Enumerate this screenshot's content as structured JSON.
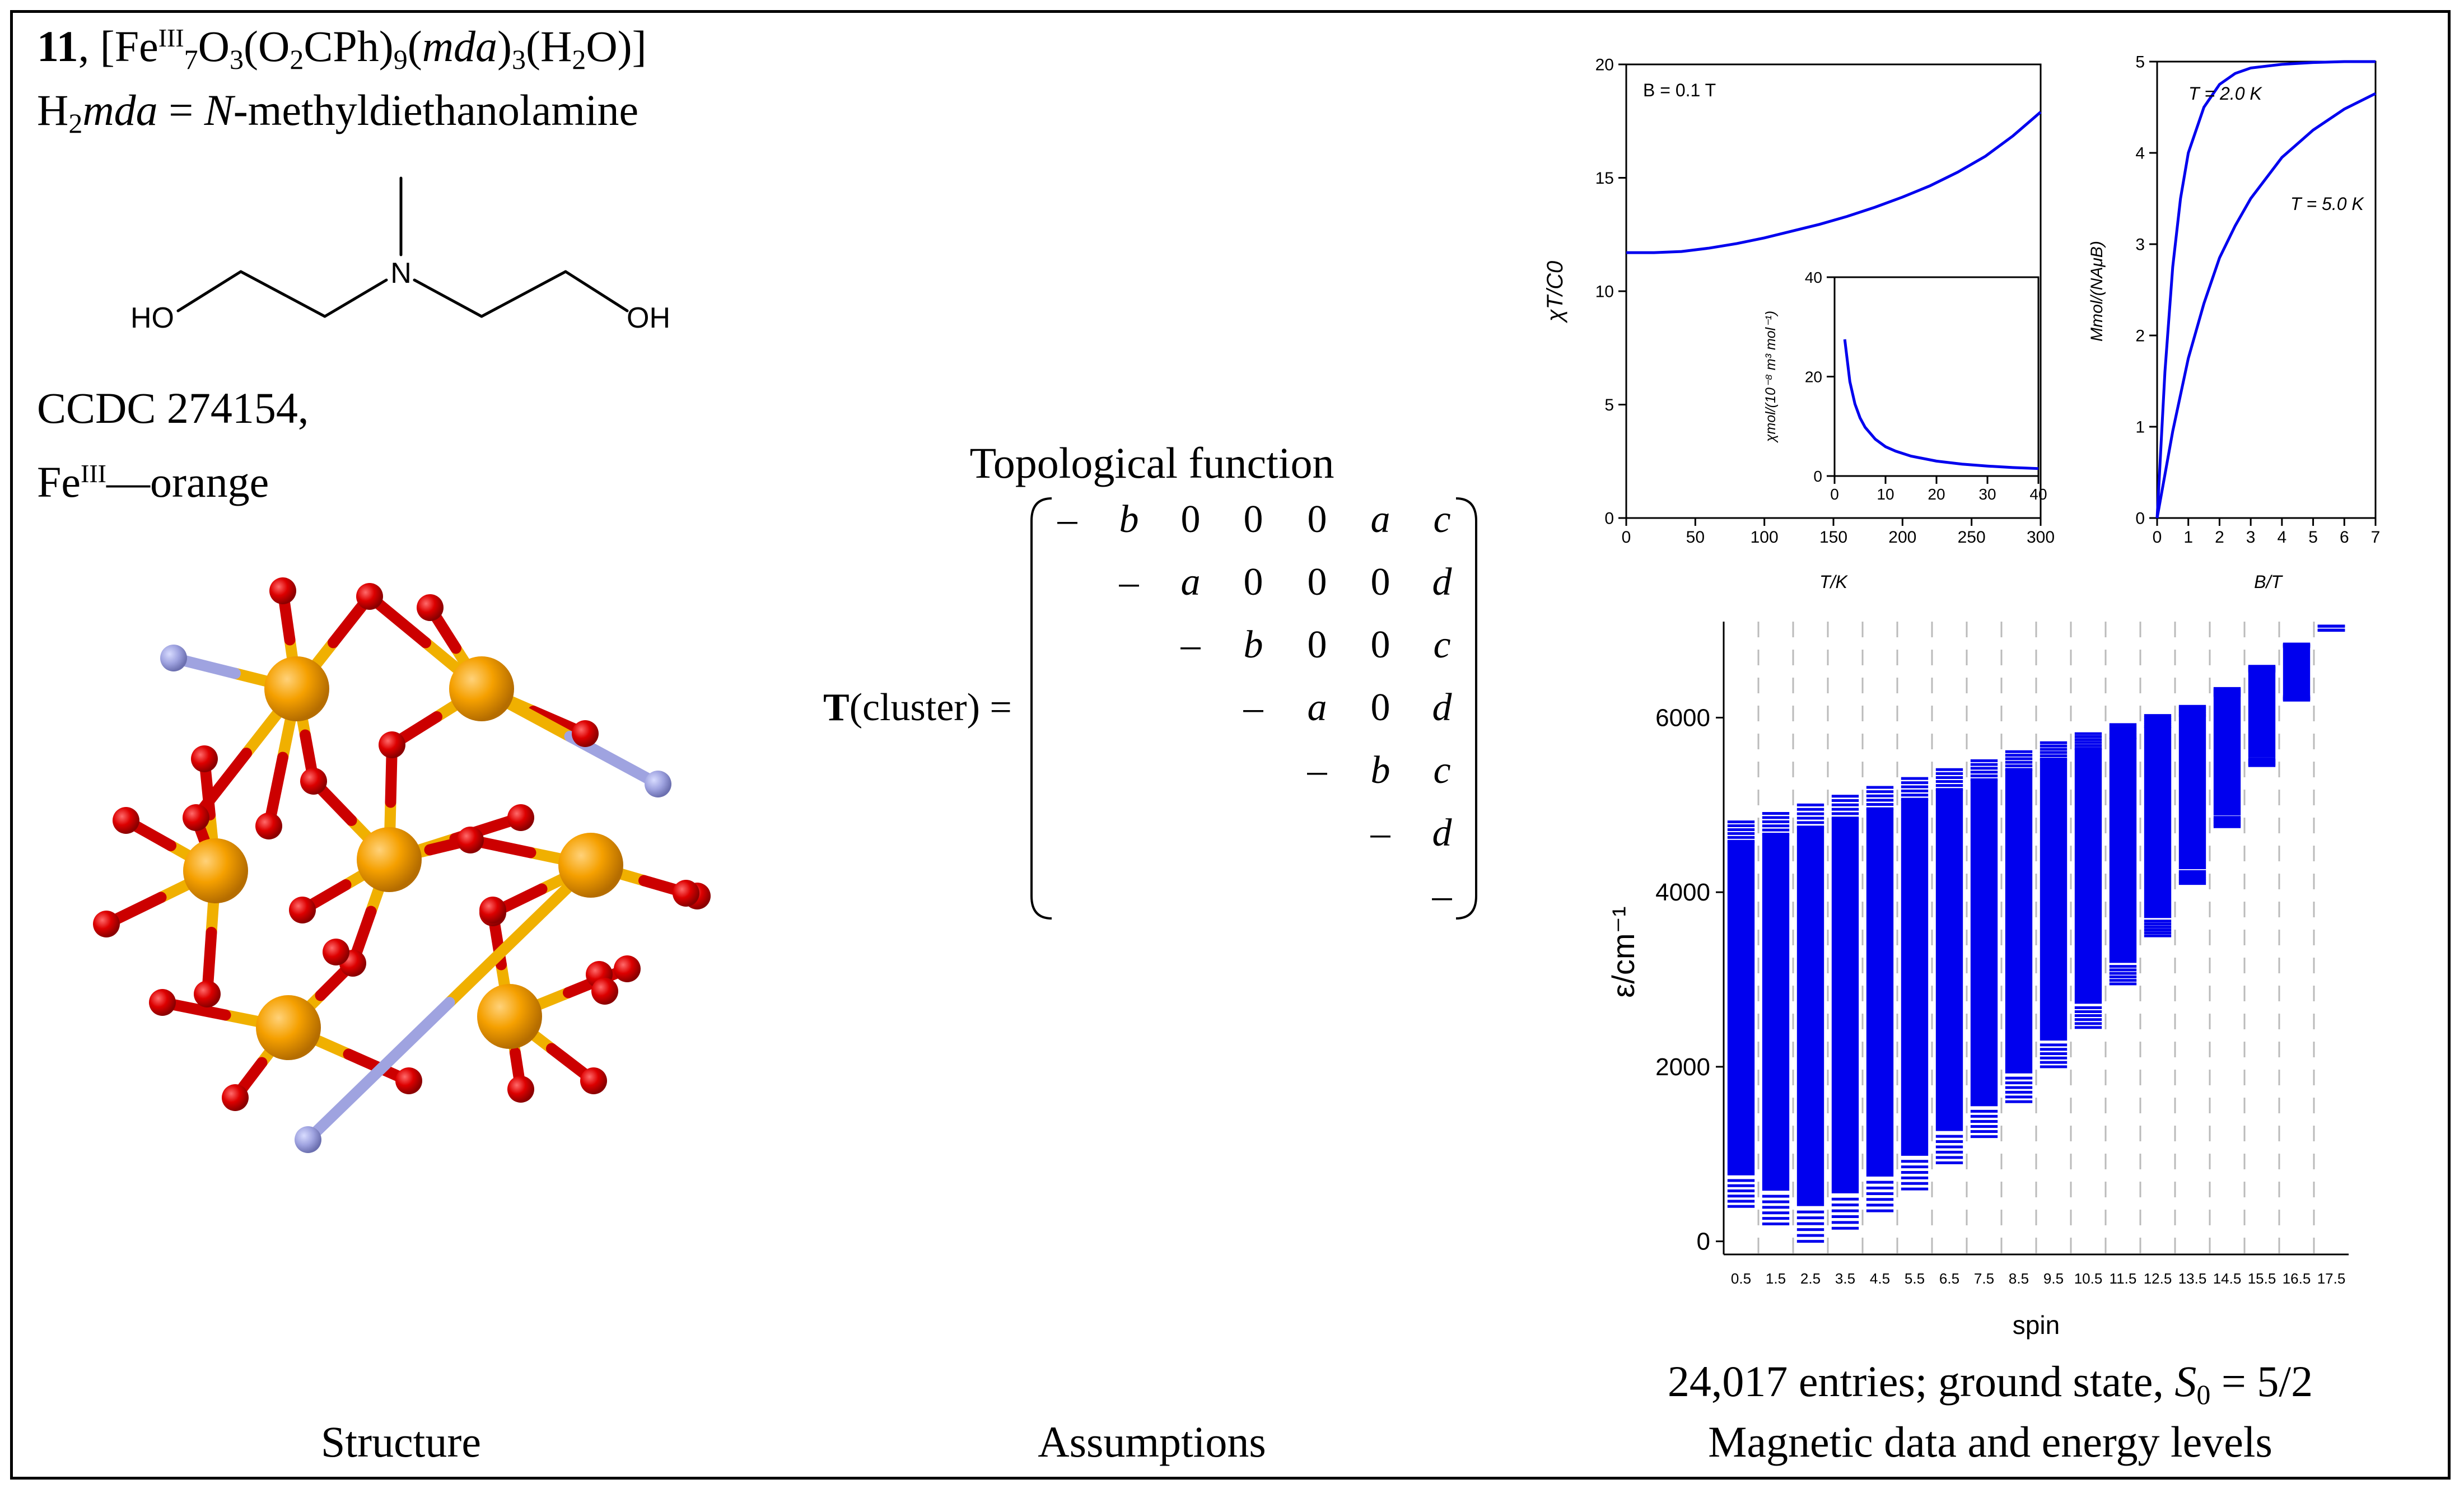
{
  "compound": {
    "number": "11",
    "formula_parts": [
      "Fe",
      "III",
      "7",
      "O",
      "3",
      "(O",
      "2",
      "CPh)",
      "9",
      "(",
      "mda",
      ")",
      "3",
      "(H",
      "2",
      "O)]"
    ],
    "ligand_h": "H",
    "ligand_2": "2",
    "ligand_abbr": "mda",
    "ligand_eq": " = ",
    "ligand_N": "N",
    "ligand_name": "-methyldiethanolamine",
    "ccdc": "CCDC 274154,",
    "color_label_fe": "Fe",
    "color_label_ox": "III",
    "color_label_rest": "—orange"
  },
  "molecule": {
    "n_label": "N",
    "ho_label": "HO",
    "oh_label": "OH"
  },
  "assumptions": {
    "heading": "Topological function",
    "lhs_T": "T",
    "lhs_rest": "(cluster) =",
    "rows": [
      [
        "–",
        "b",
        "0",
        "0",
        "0",
        "a",
        "c"
      ],
      [
        "",
        "–",
        "a",
        "0",
        "0",
        "0",
        "d"
      ],
      [
        "",
        "",
        "–",
        "b",
        "0",
        "0",
        "c"
      ],
      [
        "",
        "",
        "",
        "–",
        "a",
        "0",
        "d"
      ],
      [
        "",
        "",
        "",
        "",
        "–",
        "b",
        "c"
      ],
      [
        "",
        "",
        "",
        "",
        "",
        "–",
        "d"
      ],
      [
        "",
        "",
        "",
        "",
        "",
        "",
        "–"
      ]
    ]
  },
  "chart_data": [
    {
      "type": "line",
      "title": "",
      "annotation": "B = 0.1 T",
      "xlabel": "T/K",
      "ylabel": "χT/C0",
      "xlim": [
        0,
        300
      ],
      "ylim": [
        0,
        20
      ],
      "xticks": [
        "0",
        "50",
        "100",
        "150",
        "200",
        "250",
        "300"
      ],
      "yticks": [
        "0",
        "5",
        "10",
        "15",
        "20"
      ],
      "series": [
        {
          "name": "χT/C0",
          "x": [
            0,
            20,
            40,
            60,
            80,
            100,
            120,
            140,
            160,
            180,
            200,
            220,
            240,
            260,
            280,
            300
          ],
          "y": [
            11.7,
            11.7,
            11.75,
            11.9,
            12.1,
            12.35,
            12.65,
            12.95,
            13.3,
            13.7,
            14.15,
            14.65,
            15.25,
            15.95,
            16.85,
            17.9
          ]
        }
      ],
      "inset": {
        "type": "line",
        "xlabel": "",
        "ylabel": "χmol/(10⁻⁸ m³ mol⁻¹)",
        "xlim": [
          0,
          40
        ],
        "ylim": [
          0,
          40
        ],
        "xticks": [
          "0",
          "10",
          "20",
          "30",
          "40"
        ],
        "yticks": [
          "0",
          "20",
          "40"
        ],
        "series": [
          {
            "name": "χmol",
            "x": [
              2,
              3,
              4,
              5,
              6,
              8,
              10,
              12,
              15,
              20,
              25,
              30,
              35,
              40
            ],
            "y": [
              27.5,
              19,
              14.5,
              11.7,
              9.8,
              7.4,
              5.9,
              5,
              4,
              3,
              2.4,
              2,
              1.7,
              1.5
            ]
          }
        ]
      }
    },
    {
      "type": "line",
      "title": "",
      "xlabel": "B/T",
      "ylabel": "Mmol/(NAμB)",
      "xlim": [
        0,
        7
      ],
      "ylim": [
        0,
        5
      ],
      "xticks": [
        "0",
        "1",
        "2",
        "3",
        "4",
        "5",
        "6",
        "7"
      ],
      "yticks": [
        "0",
        "1",
        "2",
        "3",
        "4",
        "5"
      ],
      "series": [
        {
          "name": "T = 2.0 K",
          "x": [
            0,
            0.25,
            0.5,
            0.75,
            1,
            1.5,
            2,
            2.5,
            3,
            4,
            5,
            6,
            7
          ],
          "y": [
            0,
            1.6,
            2.75,
            3.5,
            4.0,
            4.5,
            4.75,
            4.87,
            4.93,
            4.97,
            4.99,
            5.0,
            5.0
          ]
        },
        {
          "name": "T = 5.0 K",
          "x": [
            0,
            0.5,
            1,
            1.5,
            2,
            2.5,
            3,
            4,
            5,
            6,
            7
          ],
          "y": [
            0,
            0.95,
            1.75,
            2.35,
            2.85,
            3.2,
            3.5,
            3.95,
            4.25,
            4.48,
            4.65
          ]
        }
      ]
    },
    {
      "type": "scatter",
      "title": "",
      "xlabel": "spin",
      "ylabel": "ε/cm⁻¹",
      "ylim": [
        -150,
        7100
      ],
      "categories": [
        "0.5",
        "1.5",
        "2.5",
        "3.5",
        "4.5",
        "5.5",
        "6.5",
        "7.5",
        "8.5",
        "9.5",
        "10.5",
        "11.5",
        "12.5",
        "13.5",
        "14.5",
        "15.5",
        "16.5",
        "17.5"
      ],
      "yticks": [
        "0",
        "2000",
        "4000",
        "6000"
      ],
      "band_min": [
        400,
        200,
        0,
        150,
        350,
        600,
        900,
        1200,
        1600,
        2000,
        2450,
        2950,
        3500,
        4100,
        4750,
        5450,
        6200,
        7000
      ],
      "band_max": [
        4850,
        4950,
        5050,
        5150,
        5250,
        5350,
        5450,
        5550,
        5650,
        5750,
        5850,
        5950,
        6050,
        6150,
        6350,
        6600,
        6850,
        7050
      ],
      "summary": "24,017 entries; ground state, S0 = 5/2"
    }
  ],
  "summary": {
    "text_a": "24,017 entries; ground state, ",
    "text_S": "S",
    "text_0": "0",
    "text_b": " = 5/2"
  },
  "captions": {
    "structure": "Structure",
    "assumptions": "Assumptions",
    "magnetic": "Magnetic data and energy levels"
  }
}
